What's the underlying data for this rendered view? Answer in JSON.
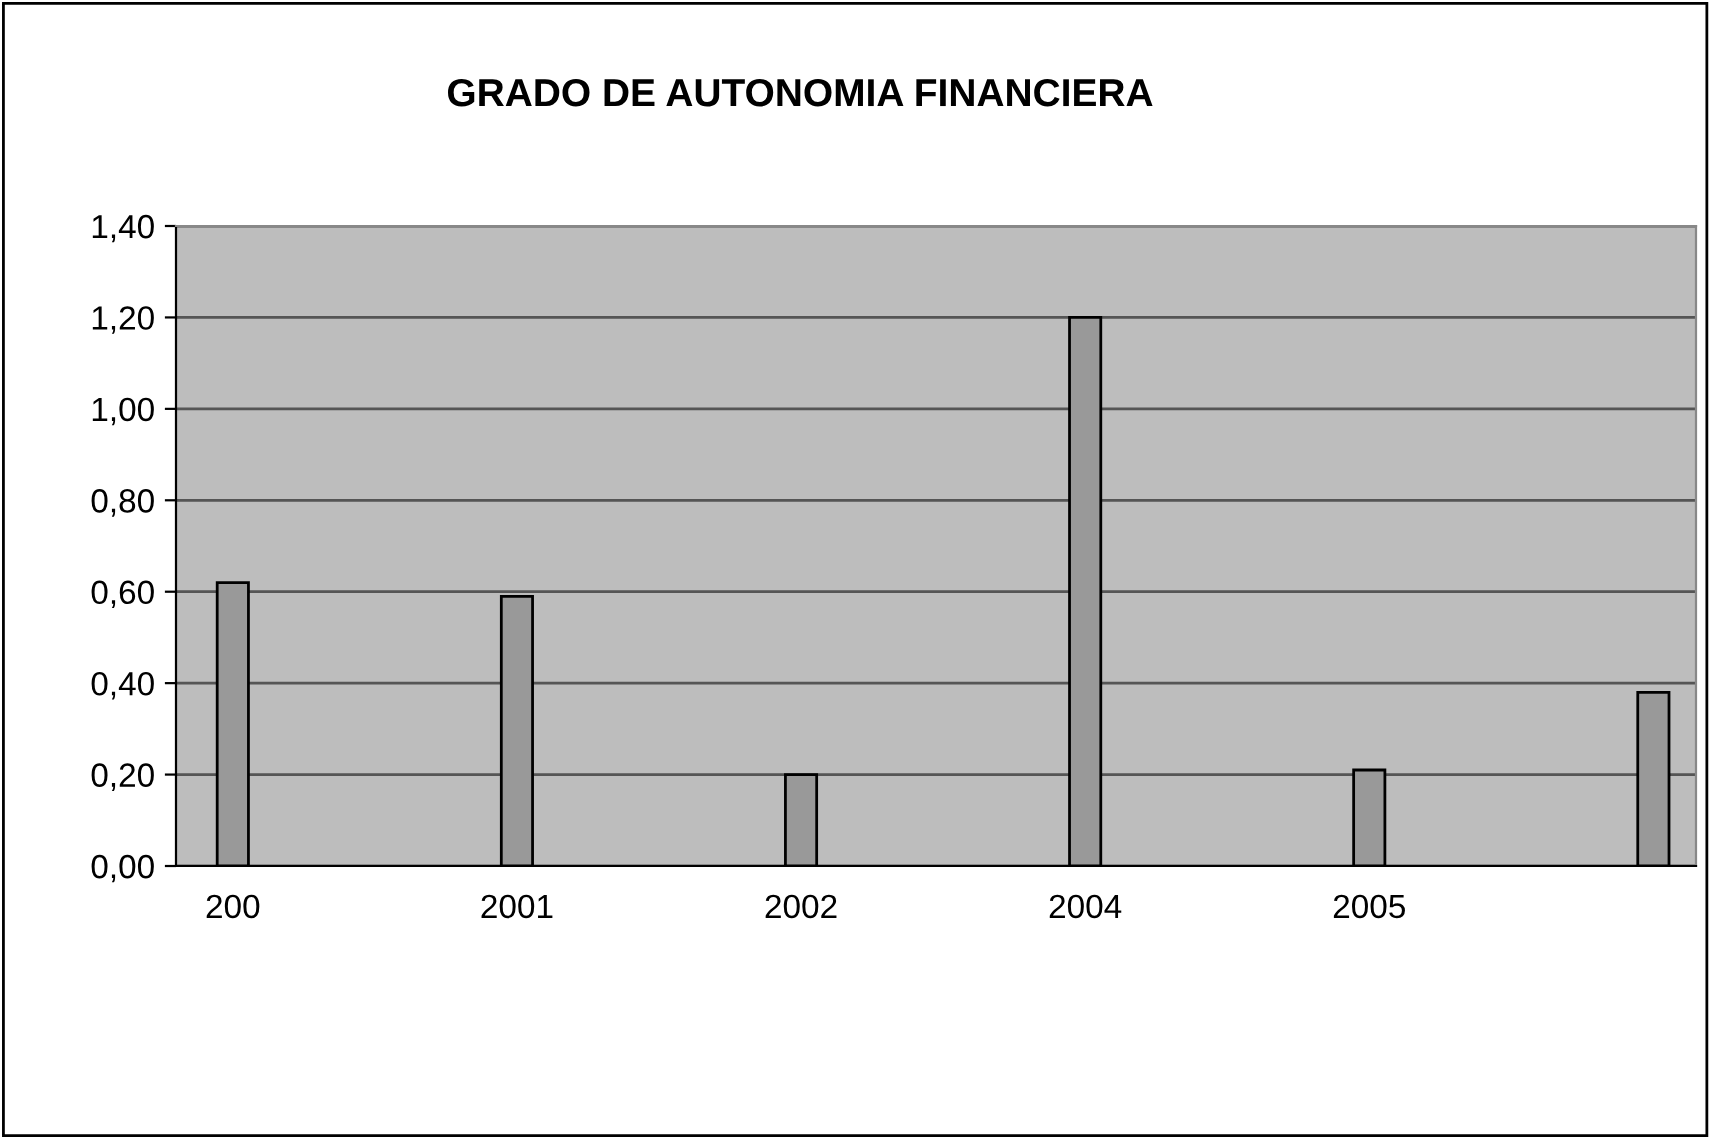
{
  "chart_data": {
    "type": "bar",
    "title": "GRADO DE AUTONOMIA FINANCIERA",
    "categories": [
      "200",
      "2001",
      "2002",
      "2004",
      "2005",
      null
    ],
    "values": [
      0.62,
      0.59,
      0.2,
      1.2,
      0.21,
      0.38
    ],
    "color": "#999999",
    "ylim": [
      0,
      1.4
    ],
    "yticks": [
      {
        "value": 0,
        "label": "0,00"
      },
      {
        "value": 0.2,
        "label": "0,20"
      },
      {
        "value": 0.4,
        "label": "0,40"
      },
      {
        "value": 0.6,
        "label": "0,60"
      },
      {
        "value": 0.8,
        "label": "0,80"
      },
      {
        "value": 1.0,
        "label": "1,00"
      },
      {
        "value": 1.2,
        "label": "1,20"
      },
      {
        "value": 1.4,
        "label": "1,40"
      }
    ],
    "grid": "y",
    "legend": false
  }
}
